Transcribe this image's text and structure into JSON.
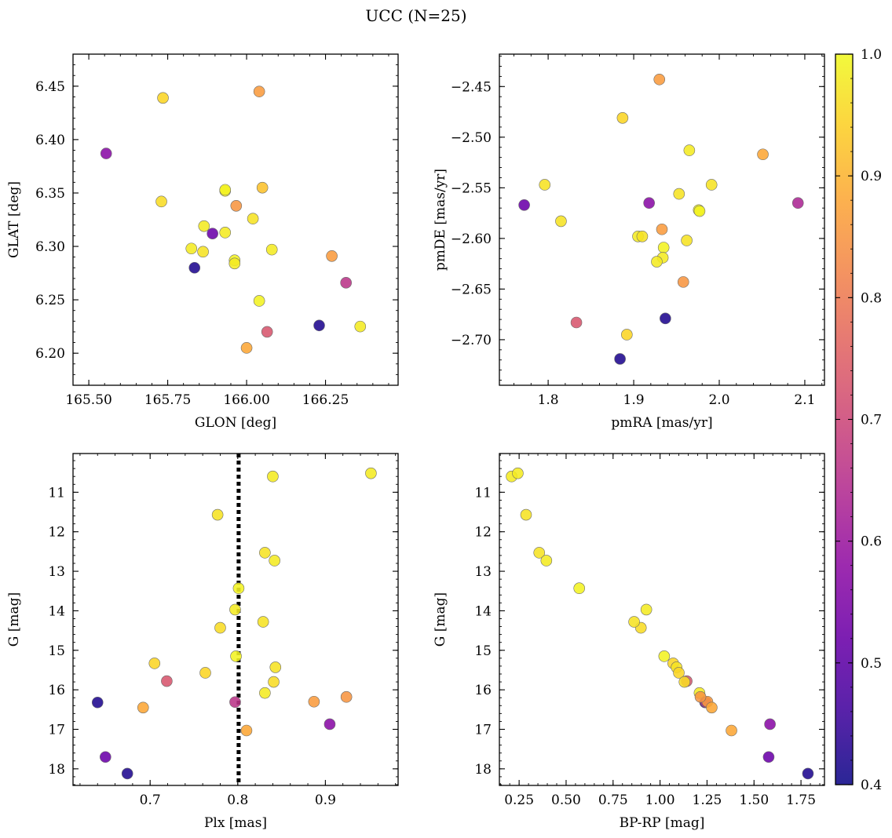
{
  "title": "UCC (N=25)",
  "colorbar": {
    "min": 0.4,
    "max": 1.0,
    "ticks": [
      0.4,
      0.5,
      0.6,
      0.7,
      0.8,
      0.9,
      1.0
    ],
    "tick_labels": [
      "0.4",
      "0.5",
      "0.6",
      "0.7",
      "0.8",
      "0.9",
      "1.0"
    ],
    "colormap": "plasma"
  },
  "chart_data": [
    {
      "type": "scatter",
      "xlabel": "GLON [deg]",
      "ylabel": "GLAT [deg]",
      "xlim": [
        165.45,
        166.48
      ],
      "ylim": [
        6.17,
        6.48
      ],
      "xticks": [
        165.5,
        165.75,
        166.0,
        166.25
      ],
      "xtick_labels": [
        "165.50",
        "165.75",
        "166.00",
        "166.25"
      ],
      "yticks": [
        6.2,
        6.25,
        6.3,
        6.35,
        6.4,
        6.45
      ],
      "ytick_labels": [
        "6.20",
        "6.25",
        "6.30",
        "6.35",
        "6.40",
        "6.45"
      ],
      "x": [
        165.555,
        165.735,
        166.04,
        165.73,
        165.932,
        166.05,
        165.967,
        166.02,
        165.865,
        165.932,
        165.892,
        165.825,
        165.862,
        166.08,
        165.962,
        165.962,
        166.27,
        165.835,
        166.315,
        166.04,
        166.065,
        166.0,
        166.23,
        166.36,
        165.932
      ],
      "y": [
        6.387,
        6.439,
        6.445,
        6.342,
        6.352,
        6.355,
        6.338,
        6.326,
        6.319,
        6.313,
        6.312,
        6.298,
        6.295,
        6.297,
        6.287,
        6.284,
        6.291,
        6.28,
        6.266,
        6.249,
        6.22,
        6.205,
        6.226,
        6.225,
        6.353
      ],
      "c": [
        0.57,
        0.95,
        0.86,
        0.96,
        0.98,
        0.92,
        0.85,
        0.97,
        0.98,
        0.98,
        0.52,
        0.98,
        0.97,
        0.98,
        0.99,
        0.98,
        0.86,
        0.42,
        0.66,
        0.99,
        0.73,
        0.88,
        0.42,
        0.98,
        0.99
      ]
    },
    {
      "type": "scatter",
      "xlabel": "pmRA [mas/yr]",
      "ylabel": "pmDE [mas/yr]",
      "xlim": [
        1.743,
        2.123
      ],
      "ylim": [
        -2.745,
        -2.418
      ],
      "xticks": [
        1.8,
        1.9,
        2.0,
        2.1
      ],
      "xtick_labels": [
        "1.8",
        "1.9",
        "2.0",
        "2.1"
      ],
      "yticks": [
        -2.7,
        -2.65,
        -2.6,
        -2.55,
        -2.5,
        -2.45
      ],
      "ytick_labels": [
        "−2.70",
        "−2.65",
        "−2.60",
        "−2.55",
        "−2.50",
        "−2.45"
      ],
      "x": [
        1.93,
        1.887,
        1.965,
        2.051,
        1.796,
        1.991,
        1.953,
        1.976,
        1.977,
        1.772,
        1.918,
        2.092,
        1.815,
        1.933,
        1.905,
        1.91,
        1.962,
        1.935,
        1.934,
        1.927,
        1.958,
        1.833,
        1.937,
        1.892,
        1.884
      ],
      "y": [
        -2.443,
        -2.481,
        -2.513,
        -2.517,
        -2.547,
        -2.547,
        -2.556,
        -2.572,
        -2.573,
        -2.567,
        -2.565,
        -2.565,
        -2.583,
        -2.591,
        -2.598,
        -2.598,
        -2.602,
        -2.609,
        -2.619,
        -2.623,
        -2.643,
        -2.683,
        -2.679,
        -2.695,
        -2.719
      ],
      "c": [
        0.86,
        0.95,
        0.98,
        0.88,
        0.97,
        0.97,
        0.97,
        0.99,
        0.99,
        0.52,
        0.57,
        0.63,
        0.97,
        0.86,
        0.98,
        0.97,
        0.97,
        0.99,
        0.98,
        0.98,
        0.85,
        0.73,
        0.42,
        0.95,
        0.42
      ]
    },
    {
      "type": "scatter",
      "xlabel": "Plx [mas]",
      "ylabel": "G [mag]",
      "xlim": [
        0.612,
        0.983
      ],
      "ylim": [
        18.42,
        10.02
      ],
      "invert_y": true,
      "vline": {
        "x": 0.801,
        "style": "dotted"
      },
      "xticks": [
        0.7,
        0.8,
        0.9
      ],
      "xtick_labels": [
        "0.7",
        "0.8",
        "0.9"
      ],
      "yticks": [
        11,
        12,
        13,
        14,
        15,
        16,
        17,
        18
      ],
      "ytick_labels": [
        "11",
        "12",
        "13",
        "14",
        "15",
        "16",
        "17",
        "18"
      ],
      "x": [
        0.952,
        0.84,
        0.777,
        0.831,
        0.842,
        0.801,
        0.797,
        0.78,
        0.829,
        0.798,
        0.705,
        0.843,
        0.763,
        0.719,
        0.841,
        0.831,
        0.64,
        0.797,
        0.887,
        0.924,
        0.692,
        0.905,
        0.81,
        0.649,
        0.674
      ],
      "y": [
        10.52,
        10.6,
        11.57,
        12.53,
        12.73,
        13.43,
        13.97,
        14.43,
        14.28,
        15.15,
        15.33,
        15.43,
        15.57,
        15.78,
        15.8,
        16.08,
        16.32,
        16.31,
        16.3,
        16.18,
        16.45,
        16.87,
        17.03,
        17.7,
        18.12
      ],
      "c": [
        0.98,
        0.98,
        0.97,
        0.97,
        0.98,
        0.99,
        0.98,
        0.96,
        0.97,
        0.99,
        0.95,
        0.97,
        0.95,
        0.73,
        0.96,
        0.98,
        0.42,
        0.66,
        0.86,
        0.85,
        0.88,
        0.57,
        0.88,
        0.52,
        0.42
      ]
    },
    {
      "type": "scatter",
      "xlabel": "BP-RP [mag]",
      "ylabel": "G [mag]",
      "xlim": [
        0.145,
        1.875
      ],
      "ylim": [
        18.42,
        10.02
      ],
      "invert_y": true,
      "xticks": [
        0.25,
        0.5,
        0.75,
        1.0,
        1.25,
        1.5,
        1.75
      ],
      "xtick_labels": [
        "0.25",
        "0.50",
        "0.75",
        "1.00",
        "1.25",
        "1.50",
        "1.75"
      ],
      "yticks": [
        11,
        12,
        13,
        14,
        15,
        16,
        17,
        18
      ],
      "ytick_labels": [
        "11",
        "12",
        "13",
        "14",
        "15",
        "16",
        "17",
        "18"
      ],
      "x": [
        0.21,
        0.243,
        0.287,
        0.357,
        0.395,
        0.57,
        0.927,
        0.898,
        0.862,
        1.022,
        1.07,
        1.088,
        1.1,
        1.142,
        1.13,
        1.21,
        1.24,
        1.244,
        1.252,
        1.215,
        1.275,
        1.585,
        1.38,
        1.578,
        1.787
      ],
      "y": [
        10.6,
        10.52,
        11.57,
        12.53,
        12.73,
        13.43,
        13.97,
        14.43,
        14.28,
        15.15,
        15.33,
        15.43,
        15.57,
        15.78,
        15.8,
        16.08,
        16.32,
        16.31,
        16.3,
        16.18,
        16.45,
        16.87,
        17.03,
        17.7,
        18.12
      ],
      "c": [
        0.98,
        0.98,
        0.97,
        0.97,
        0.98,
        0.99,
        0.98,
        0.96,
        0.97,
        0.99,
        0.95,
        0.97,
        0.95,
        0.73,
        0.96,
        0.98,
        0.42,
        0.66,
        0.86,
        0.85,
        0.88,
        0.57,
        0.88,
        0.52,
        0.42
      ]
    }
  ]
}
